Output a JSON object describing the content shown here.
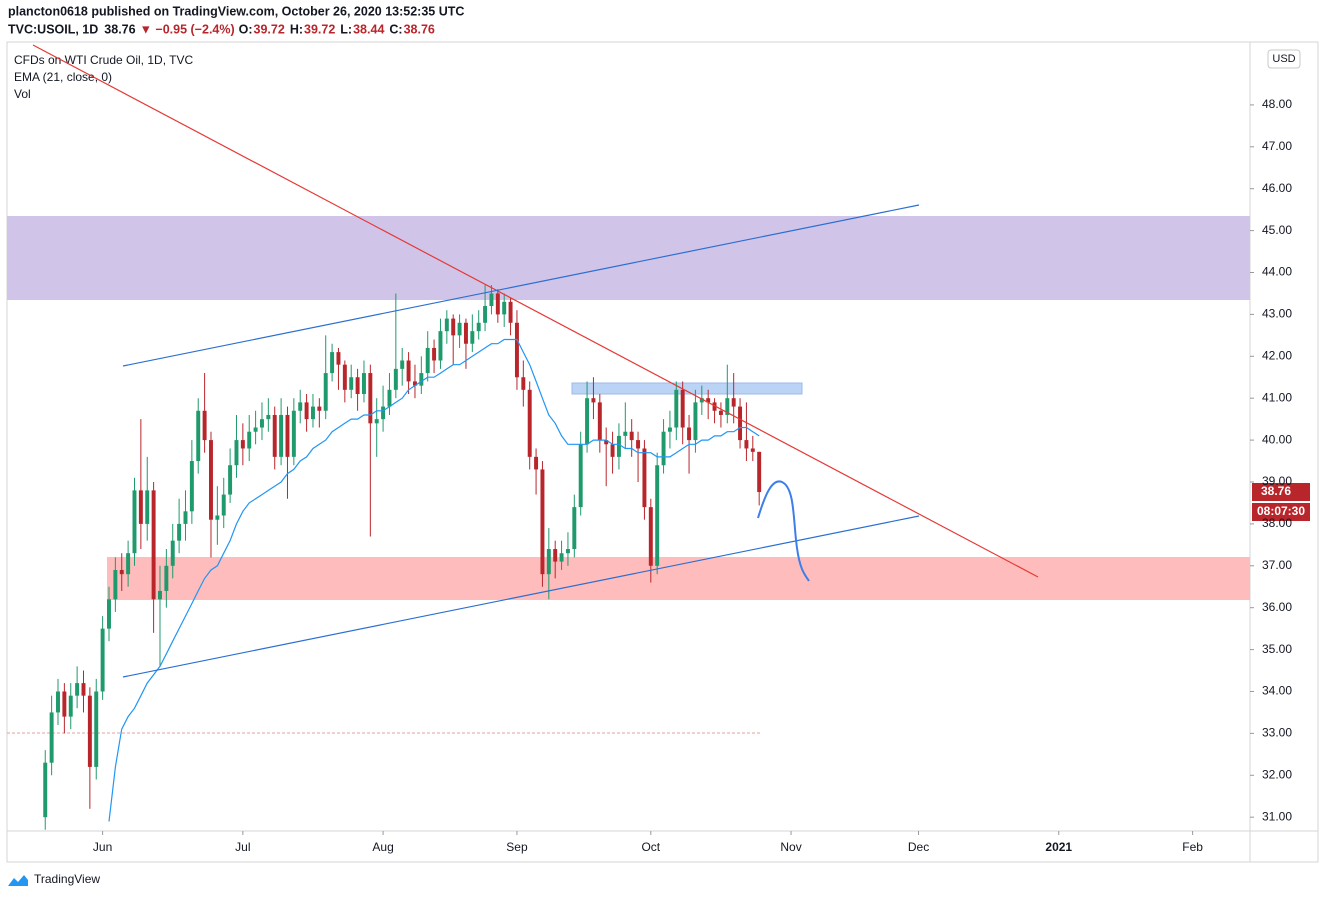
{
  "header": {
    "published": "plancton0618 published on TradingView.com, October 26, 2020 13:52:35 UTC",
    "symbol": "TVC:USOIL, 1D",
    "last": "38.76",
    "change": "▼ −0.95 (−2.4%)",
    "ohlc": [
      {
        "label": "O:",
        "value": "39.72"
      },
      {
        "label": "H:",
        "value": "39.72"
      },
      {
        "label": "L:",
        "value": "38.44"
      },
      {
        "label": "C:",
        "value": "38.76"
      }
    ]
  },
  "chart_data": {
    "type": "candlestick",
    "title": "CFDs on WTI Crude Oil, 1D, TVC",
    "volume_label": "Vol",
    "currency": "USD",
    "last_price_label": "38.76",
    "countdown": "08:07:30",
    "up_color": "#1f9a6c",
    "down_color": "#b8262c",
    "categories": [
      null,
      null,
      null,
      null,
      null,
      null,
      null,
      null,
      null,
      null,
      null,
      null,
      null,
      null,
      null,
      null,
      null,
      null,
      null,
      null,
      null,
      null,
      null,
      null,
      null,
      null,
      null,
      null,
      null,
      null,
      null,
      null,
      null,
      null,
      null,
      null,
      null,
      null,
      null,
      null,
      null,
      null,
      null,
      null,
      null,
      null,
      null,
      null,
      null,
      null,
      null,
      null,
      null,
      null,
      null,
      null,
      null,
      null,
      null,
      null,
      null,
      null,
      null,
      null,
      null,
      null,
      null,
      null,
      null,
      null,
      null,
      null,
      null,
      null,
      null,
      null,
      null,
      null,
      null,
      null,
      null,
      null,
      null,
      null,
      null,
      null,
      null,
      null,
      null,
      null,
      null,
      null,
      null,
      null,
      null,
      null,
      null,
      null,
      null,
      null,
      null,
      null,
      null,
      null,
      null,
      null,
      null,
      null,
      null,
      null,
      null,
      null,
      null
    ],
    "open": [
      31.0,
      32.3,
      33.5,
      34.0,
      33.4,
      33.9,
      34.2,
      33.9,
      32.2,
      34.0,
      35.5,
      36.2,
      36.9,
      36.8,
      37.3,
      38.8,
      38.0,
      38.8,
      36.2,
      36.4,
      37.0,
      37.6,
      38.0,
      38.3,
      39.5,
      40.7,
      40.0,
      38.1,
      38.2,
      38.7,
      39.4,
      40.0,
      39.8,
      40.2,
      40.3,
      40.5,
      40.6,
      39.6,
      40.6,
      39.6,
      40.7,
      40.9,
      40.5,
      40.8,
      40.7,
      41.6,
      42.1,
      41.8,
      41.2,
      41.5,
      41.1,
      41.6,
      40.4,
      40.5,
      40.8,
      41.2,
      41.7,
      41.9,
      41.4,
      41.3,
      41.6,
      42.2,
      41.9,
      42.6,
      42.9,
      42.5,
      42.8,
      42.3,
      42.6,
      42.8,
      43.2,
      43.5,
      43.0,
      43.3,
      42.8,
      41.5,
      41.2,
      39.6,
      39.3,
      36.8,
      37.4,
      37.1,
      37.3,
      37.4,
      38.4,
      39.9,
      41.0,
      40.9,
      40.0,
      39.9,
      39.6,
      40.1,
      40.2,
      40.0,
      39.8,
      38.4,
      37.0,
      39.4,
      40.2,
      40.3,
      41.2,
      40.3,
      40.0,
      40.9,
      41.0,
      40.9,
      40.7,
      40.6,
      41.0,
      40.8,
      40.0,
      39.8,
      39.72
    ],
    "high": [
      32.6,
      33.9,
      34.3,
      34.2,
      34.2,
      34.6,
      34.5,
      34.1,
      34.3,
      35.8,
      36.5,
      37.2,
      37.3,
      37.6,
      39.1,
      40.5,
      39.6,
      39.0,
      37.0,
      37.4,
      38.0,
      38.6,
      38.8,
      40.0,
      41.0,
      41.6,
      40.2,
      38.9,
      39.1,
      39.8,
      40.6,
      40.4,
      40.6,
      40.7,
      40.9,
      41.0,
      40.8,
      41.0,
      40.8,
      41.0,
      41.2,
      41.1,
      41.1,
      41.0,
      42.5,
      42.3,
      42.2,
      41.9,
      41.8,
      41.7,
      41.9,
      41.8,
      41.0,
      41.3,
      41.6,
      43.5,
      42.2,
      42.1,
      41.8,
      42.0,
      42.6,
      42.4,
      42.9,
      43.1,
      43.0,
      43.0,
      42.9,
      43.0,
      43.1,
      43.7,
      43.7,
      43.6,
      43.5,
      43.4,
      43.1,
      41.9,
      41.4,
      39.8,
      39.5,
      37.9,
      37.6,
      37.6,
      37.8,
      38.7,
      40.2,
      41.4,
      41.5,
      41.1,
      40.3,
      40.2,
      40.4,
      40.9,
      40.5,
      40.2,
      40.0,
      38.6,
      39.7,
      40.5,
      40.7,
      41.4,
      41.4,
      40.6,
      41.2,
      41.3,
      41.2,
      41.0,
      40.9,
      41.8,
      41.6,
      41.0,
      40.9,
      40.1,
      39.72
    ],
    "low": [
      30.7,
      32.0,
      33.2,
      33.0,
      33.1,
      33.6,
      33.5,
      31.2,
      31.9,
      33.8,
      35.2,
      35.9,
      36.4,
      36.5,
      37.0,
      37.4,
      37.6,
      35.4,
      34.6,
      36.0,
      36.7,
      37.3,
      37.6,
      38.0,
      39.2,
      39.7,
      37.2,
      37.5,
      37.9,
      38.5,
      39.1,
      39.4,
      39.5,
      39.9,
      40.0,
      40.2,
      39.3,
      39.4,
      38.6,
      39.4,
      40.4,
      40.2,
      40.3,
      40.3,
      40.5,
      41.4,
      41.2,
      40.9,
      41.0,
      40.7,
      40.9,
      37.7,
      39.6,
      40.2,
      40.6,
      41.0,
      41.3,
      41.1,
      41.0,
      41.1,
      41.4,
      41.6,
      41.7,
      42.3,
      41.8,
      42.2,
      41.7,
      42.1,
      42.4,
      42.6,
      43.0,
      42.8,
      42.7,
      42.5,
      41.2,
      40.8,
      39.3,
      38.7,
      36.5,
      36.2,
      36.7,
      36.9,
      37.0,
      37.2,
      38.2,
      39.7,
      40.5,
      39.7,
      38.9,
      39.2,
      39.3,
      39.8,
      39.6,
      39.0,
      38.1,
      36.6,
      36.8,
      39.2,
      39.8,
      40.0,
      39.9,
      39.2,
      39.7,
      40.6,
      40.5,
      40.4,
      40.3,
      40.4,
      40.4,
      39.8,
      39.5,
      39.5,
      38.44
    ],
    "close": [
      32.3,
      33.5,
      34.0,
      33.4,
      33.9,
      34.2,
      33.9,
      32.2,
      34.0,
      35.5,
      36.2,
      36.9,
      36.8,
      37.3,
      38.8,
      38.0,
      38.8,
      36.2,
      36.4,
      37.0,
      37.6,
      38.0,
      38.3,
      39.5,
      40.7,
      40.0,
      38.1,
      38.2,
      38.7,
      39.4,
      40.0,
      39.8,
      40.2,
      40.3,
      40.5,
      40.6,
      39.6,
      40.6,
      39.6,
      40.7,
      40.9,
      40.5,
      40.8,
      40.7,
      41.6,
      42.1,
      41.8,
      41.2,
      41.5,
      41.1,
      41.6,
      40.4,
      40.5,
      40.8,
      41.2,
      41.7,
      41.9,
      41.4,
      41.3,
      41.6,
      42.2,
      41.9,
      42.6,
      42.9,
      42.5,
      42.8,
      42.3,
      42.6,
      42.8,
      43.2,
      43.5,
      43.0,
      43.3,
      42.8,
      41.5,
      41.2,
      39.6,
      39.3,
      36.8,
      37.4,
      37.1,
      37.3,
      37.4,
      38.4,
      39.9,
      41.0,
      40.9,
      40.0,
      39.9,
      39.6,
      40.1,
      40.2,
      40.0,
      39.8,
      38.4,
      37.0,
      39.4,
      40.2,
      40.3,
      41.2,
      40.3,
      40.0,
      40.9,
      41.0,
      40.9,
      40.7,
      40.6,
      41.0,
      40.8,
      40.0,
      39.8,
      39.72,
      38.76
    ],
    "series": [
      {
        "name": "EMA (21, close, 0)",
        "color": "#2196f3",
        "values": [
          null,
          null,
          null,
          null,
          null,
          null,
          null,
          null,
          null,
          null,
          30.9,
          32.2,
          33.1,
          33.4,
          33.6,
          33.9,
          34.2,
          34.4,
          34.6,
          34.9,
          35.2,
          35.5,
          35.8,
          36.1,
          36.4,
          36.7,
          36.9,
          37.0,
          37.3,
          37.6,
          38.0,
          38.3,
          38.5,
          38.6,
          38.7,
          38.8,
          38.9,
          39.0,
          39.2,
          39.3,
          39.5,
          39.6,
          39.8,
          39.9,
          40.0,
          40.2,
          40.3,
          40.4,
          40.5,
          40.5,
          40.6,
          40.6,
          40.7,
          40.7,
          40.8,
          40.9,
          41.0,
          41.2,
          41.3,
          41.4,
          41.5,
          41.5,
          41.6,
          41.7,
          41.8,
          41.8,
          41.9,
          42.0,
          42.1,
          42.2,
          42.3,
          42.3,
          42.4,
          42.4,
          42.4,
          42.1,
          41.8,
          41.4,
          41.0,
          40.6,
          40.4,
          40.1,
          39.9,
          39.9,
          39.9,
          39.9,
          40.0,
          40.0,
          40.0,
          39.9,
          39.9,
          39.8,
          39.8,
          39.7,
          39.7,
          39.7,
          39.6,
          39.6,
          39.6,
          39.7,
          39.8,
          39.9,
          39.9,
          40.0,
          40.0,
          40.1,
          40.1,
          40.2,
          40.2,
          40.3,
          40.3,
          40.2,
          40.1
        ]
      }
    ],
    "xlim": [
      -6,
      189
    ],
    "xticks": [
      {
        "value": 9,
        "label": "Jun"
      },
      {
        "value": 31,
        "label": "Jul"
      },
      {
        "value": 53,
        "label": "Aug"
      },
      {
        "value": 74,
        "label": "Sep"
      },
      {
        "value": 95,
        "label": "Oct"
      },
      {
        "value": 117,
        "label": "Nov"
      },
      {
        "value": 137,
        "label": "Dec"
      },
      {
        "value": 159,
        "label": "2021"
      },
      {
        "value": 180,
        "label": "Feb"
      }
    ],
    "ylim": [
      30.67,
      49.43
    ],
    "yticks": [
      {
        "value": 31,
        "label": "31.00"
      },
      {
        "value": 32,
        "label": "32.00"
      },
      {
        "value": 33,
        "label": "33.00"
      },
      {
        "value": 34,
        "label": "34.00"
      },
      {
        "value": 35,
        "label": "35.00"
      },
      {
        "value": 36,
        "label": "36.00"
      },
      {
        "value": 37,
        "label": "37.00"
      },
      {
        "value": 38,
        "label": "38.00"
      },
      {
        "value": 39,
        "label": "39.00"
      },
      {
        "value": 40,
        "label": "40.00"
      },
      {
        "value": 41,
        "label": "41.00"
      },
      {
        "value": 42,
        "label": "42.00"
      },
      {
        "value": 43,
        "label": "43.00"
      },
      {
        "value": 44,
        "label": "44.00"
      },
      {
        "value": 45,
        "label": "45.00"
      },
      {
        "value": 46,
        "label": "46.00"
      },
      {
        "value": 47,
        "label": "47.00"
      },
      {
        "value": 48,
        "label": "48.00"
      }
    ]
  },
  "footer": {
    "brand": "TradingView"
  }
}
